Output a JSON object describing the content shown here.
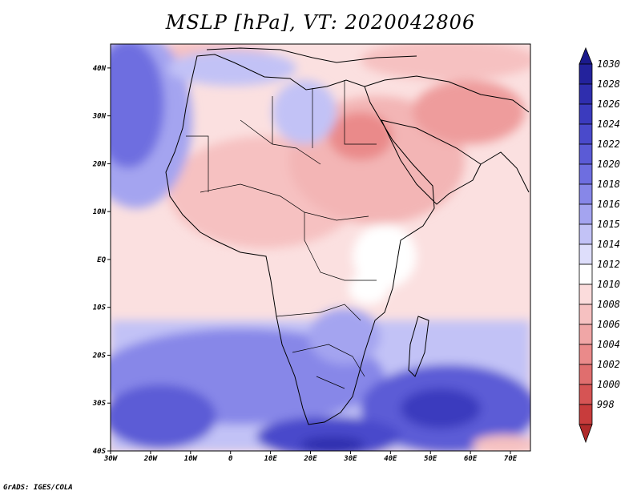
{
  "title": "MSLP [hPa], VT: 2020042806",
  "credit": "GrADS: IGES/COLA",
  "map": {
    "lon_range": [
      -30,
      75
    ],
    "lat_range": [
      -40,
      45
    ],
    "lat_ticks": [
      {
        "value": 40,
        "label": "40N"
      },
      {
        "value": 30,
        "label": "30N"
      },
      {
        "value": 20,
        "label": "20N"
      },
      {
        "value": 10,
        "label": "10N"
      },
      {
        "value": 0,
        "label": "EQ"
      },
      {
        "value": -10,
        "label": "10S"
      },
      {
        "value": -20,
        "label": "20S"
      },
      {
        "value": -30,
        "label": "30S"
      },
      {
        "value": -40,
        "label": "40S"
      }
    ],
    "lon_ticks": [
      {
        "value": -30,
        "label": "30W"
      },
      {
        "value": -20,
        "label": "20W"
      },
      {
        "value": -10,
        "label": "10W"
      },
      {
        "value": 0,
        "label": "0"
      },
      {
        "value": 10,
        "label": "10E"
      },
      {
        "value": 20,
        "label": "20E"
      },
      {
        "value": 30,
        "label": "30E"
      },
      {
        "value": 40,
        "label": "40E"
      },
      {
        "value": 50,
        "label": "50E"
      },
      {
        "value": 60,
        "label": "60E"
      },
      {
        "value": 70,
        "label": "70E"
      }
    ]
  },
  "colorbar": {
    "levels": [
      {
        "label": "1030",
        "color": "#23229c"
      },
      {
        "label": "1028",
        "color": "#2f2eae"
      },
      {
        "label": "1026",
        "color": "#3b3bbe"
      },
      {
        "label": "1024",
        "color": "#4a4acb"
      },
      {
        "label": "1022",
        "color": "#5b5bd6"
      },
      {
        "label": "1020",
        "color": "#6e6ee0"
      },
      {
        "label": "1018",
        "color": "#8787e8"
      },
      {
        "label": "1016",
        "color": "#a4a4f0"
      },
      {
        "label": "1015",
        "color": "#c2c2f6"
      },
      {
        "label": "1014",
        "color": "#dedefb"
      },
      {
        "label": "1012",
        "color": "#ffffff"
      },
      {
        "label": "1010",
        "color": "#fbdcdc"
      },
      {
        "label": "1008",
        "color": "#f6c1c1"
      },
      {
        "label": "1006",
        "color": "#f0a6a6"
      },
      {
        "label": "1004",
        "color": "#ea8a8a"
      },
      {
        "label": "1002",
        "color": "#e06e6e"
      },
      {
        "label": "1000",
        "color": "#d65454"
      },
      {
        "label": "998",
        "color": "#c83c3c"
      }
    ],
    "top_arrow_color": "#1b1a8c",
    "bottom_arrow_color": "#b02a2a"
  }
}
